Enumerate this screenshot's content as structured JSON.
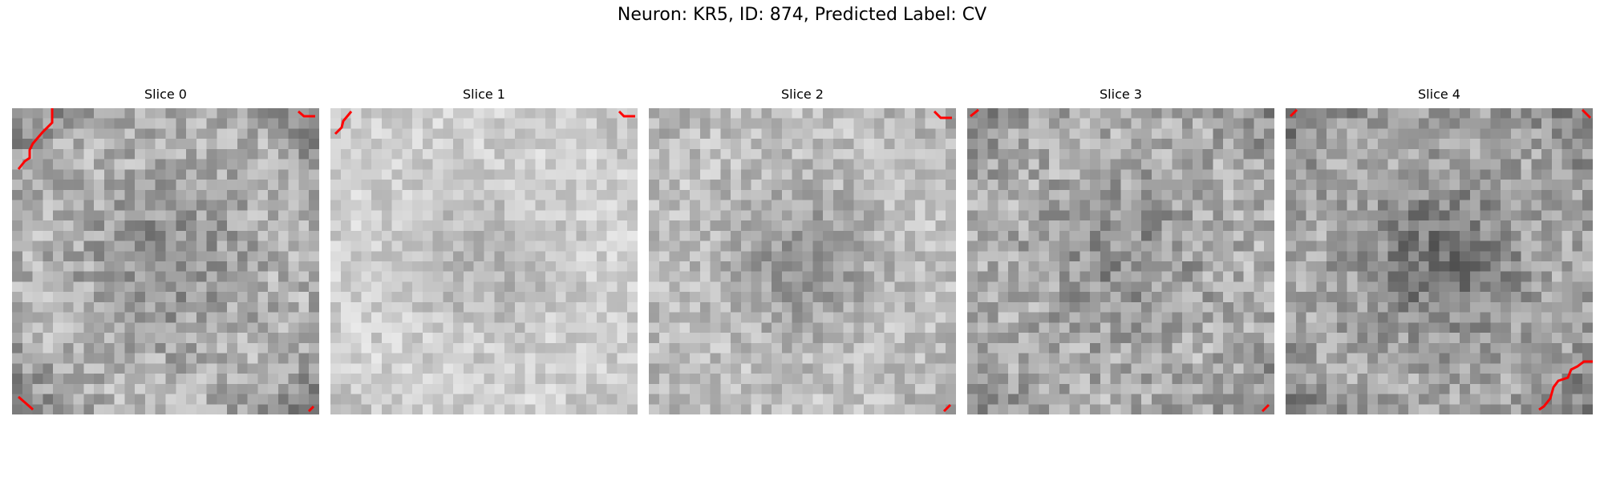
{
  "figure": {
    "title": "Neuron: KR5, ID: 874, Predicted Label: CV"
  },
  "slices": [
    {
      "label": "Slice 0",
      "brightness": 0.7,
      "contrast": 0.15,
      "dark_center": 0.15,
      "dark_edges": 0.3
    },
    {
      "label": "Slice 1",
      "brightness": 0.82,
      "contrast": 0.1,
      "dark_center": 0.12,
      "dark_edges": 0.1
    },
    {
      "label": "Slice 2",
      "brightness": 0.76,
      "contrast": 0.12,
      "dark_center": 0.18,
      "dark_edges": 0.12
    },
    {
      "label": "Slice 3",
      "brightness": 0.68,
      "contrast": 0.16,
      "dark_center": 0.12,
      "dark_edges": 0.2
    },
    {
      "label": "Slice 4",
      "brightness": 0.66,
      "contrast": 0.15,
      "dark_center": 0.22,
      "dark_edges": 0.3
    }
  ],
  "colors": {
    "contour": "#ff0000",
    "background": "#ffffff",
    "text": "#000000"
  }
}
